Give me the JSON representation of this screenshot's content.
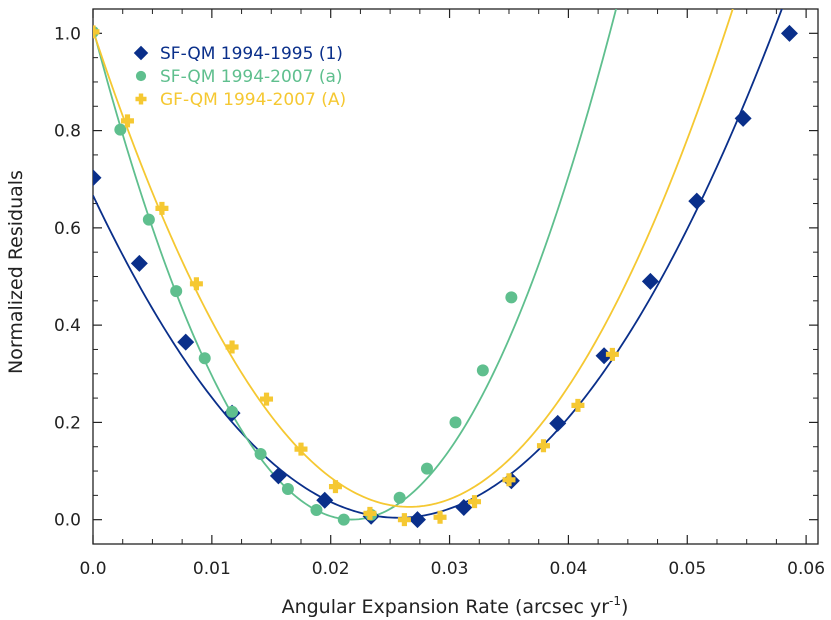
{
  "chart_data": {
    "type": "scatter",
    "title": "",
    "xlabel": "Angular Expansion Rate (arcsec yr",
    "xlabel_sup": "-1",
    "xlabel_end": ")",
    "ylabel": "Normalized Residuals",
    "xlim": [
      0.0,
      0.061
    ],
    "ylim": [
      -0.05,
      1.05
    ],
    "xticks": [
      0.0,
      0.01,
      0.02,
      0.03,
      0.04,
      0.05,
      0.06
    ],
    "xtick_labels": [
      "0.0",
      "0.01",
      "0.02",
      "0.03",
      "0.04",
      "0.05",
      "0.06"
    ],
    "yticks": [
      0.0,
      0.2,
      0.4,
      0.6,
      0.8,
      1.0
    ],
    "ytick_labels": [
      "0.0",
      "0.2",
      "0.4",
      "0.6",
      "0.8",
      "1.0"
    ],
    "legend_position": "top-left",
    "series": [
      {
        "name": "SF-QM 1994-1995  (1)",
        "color": "#0a2f8a",
        "marker": "diamond",
        "fit": [
          0.6667,
          -51.6,
          1004.4
        ],
        "x": [
          0.0,
          0.0039,
          0.0078,
          0.0117,
          0.0156,
          0.0195,
          0.0234,
          0.0273,
          0.0312,
          0.0352,
          0.0391,
          0.043,
          0.0469,
          0.0508,
          0.0547,
          0.0586
        ],
        "y": [
          0.703,
          0.527,
          0.365,
          0.219,
          0.09,
          0.04,
          0.007,
          0.0,
          0.025,
          0.08,
          0.198,
          0.337,
          0.49,
          0.655,
          0.825,
          1.0
        ]
      },
      {
        "name": "SF-QM 1994-2007 (a)",
        "color": "#5fbf8e",
        "marker": "circle",
        "fit": [
          1.0104,
          -92.7,
          2126.8
        ],
        "x": [
          0.0,
          0.0023,
          0.0047,
          0.007,
          0.0094,
          0.0117,
          0.0141,
          0.0164,
          0.0188,
          0.0211,
          0.0234,
          0.0258,
          0.0281,
          0.0305,
          0.0328,
          0.0352
        ],
        "y": [
          1.003,
          0.802,
          0.617,
          0.47,
          0.332,
          0.222,
          0.135,
          0.063,
          0.02,
          0.0,
          0.01,
          0.045,
          0.105,
          0.2,
          0.307,
          0.457
        ]
      },
      {
        "name": "GF-QM 1994-2007 (A)",
        "color": "#f5c832",
        "marker": "plus",
        "fit": [
          1.0058,
          -73.6,
          1382.6
        ],
        "x": [
          0.0,
          0.0029,
          0.0058,
          0.0087,
          0.0117,
          0.0146,
          0.0175,
          0.0204,
          0.0233,
          0.0262,
          0.0292,
          0.0321,
          0.035,
          0.0379,
          0.0408,
          0.0437
        ],
        "y": [
          1.003,
          0.82,
          0.64,
          0.485,
          0.355,
          0.248,
          0.145,
          0.068,
          0.013,
          0.0,
          0.005,
          0.037,
          0.082,
          0.152,
          0.235,
          0.34
        ]
      }
    ]
  }
}
